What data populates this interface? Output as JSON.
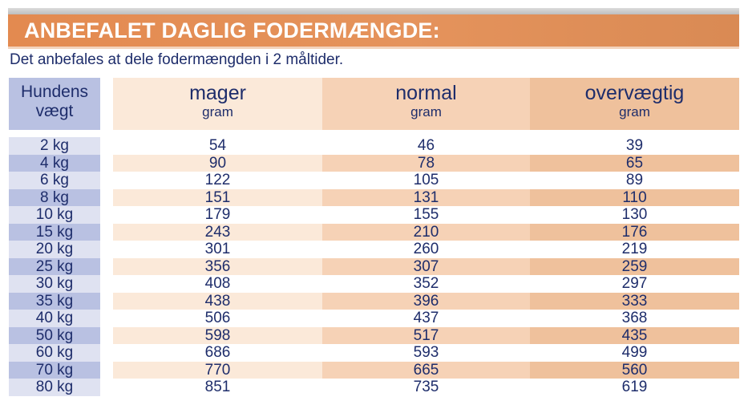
{
  "title": "ANBEFALET DAGLIG FODERMÆNGDE:",
  "subtitle": "Det anbefales at dele fodermængden i 2 måltider.",
  "table": {
    "weight_header": [
      "Hundens",
      "vægt"
    ],
    "columns": [
      {
        "name": "mager",
        "unit": "gram"
      },
      {
        "name": "normal",
        "unit": "gram"
      },
      {
        "name": "overvægtig",
        "unit": "gram"
      }
    ],
    "rows": [
      [
        "2 kg",
        "54",
        "46",
        "39"
      ],
      [
        "4 kg",
        "90",
        "78",
        "65"
      ],
      [
        "6 kg",
        "122",
        "105",
        "89"
      ],
      [
        "8 kg",
        "151",
        "131",
        "110"
      ],
      [
        "10 kg",
        "179",
        "155",
        "130"
      ],
      [
        "15 kg",
        "243",
        "210",
        "176"
      ],
      [
        "20 kg",
        "301",
        "260",
        "219"
      ],
      [
        "25 kg",
        "356",
        "307",
        "259"
      ],
      [
        "30 kg",
        "408",
        "352",
        "297"
      ],
      [
        "35 kg",
        "438",
        "396",
        "333"
      ],
      [
        "40 kg",
        "506",
        "437",
        "368"
      ],
      [
        "50 kg",
        "598",
        "517",
        "435"
      ],
      [
        "60 kg",
        "686",
        "593",
        "499"
      ],
      [
        "70 kg",
        "770",
        "665",
        "560"
      ],
      [
        "80 kg",
        "851",
        "735",
        "619"
      ]
    ]
  }
}
